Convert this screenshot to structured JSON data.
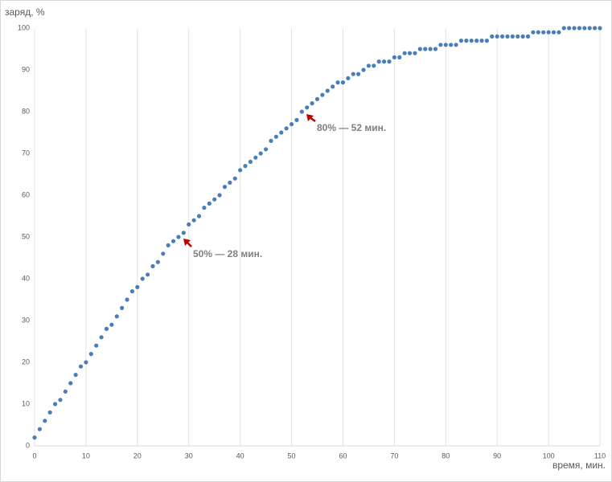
{
  "chart_data": {
    "type": "scatter",
    "y_label": "заряд, %",
    "x_label": "время, мин.",
    "annotations": [
      {
        "text": "50% — 28 мин."
      },
      {
        "text": "80% — 52 мин."
      }
    ],
    "series": [
      {
        "name": "заряд",
        "color": "#4a7ebb",
        "x": [
          0,
          1,
          2,
          3,
          4,
          5,
          6,
          7,
          8,
          9,
          10,
          11,
          12,
          13,
          14,
          15,
          16,
          17,
          18,
          19,
          20,
          21,
          22,
          23,
          24,
          25,
          26,
          27,
          28,
          29,
          30,
          31,
          32,
          33,
          34,
          35,
          36,
          37,
          38,
          39,
          40,
          41,
          42,
          43,
          44,
          45,
          46,
          47,
          48,
          49,
          50,
          51,
          52,
          53,
          54,
          55,
          56,
          57,
          58,
          59,
          60,
          61,
          62,
          63,
          64,
          65,
          66,
          67,
          68,
          69,
          70,
          71,
          72,
          73,
          74,
          75,
          76,
          77,
          78,
          79,
          80,
          81,
          82,
          83,
          84,
          85,
          86,
          87,
          88,
          89,
          90,
          91,
          92,
          93,
          94,
          95,
          96,
          97,
          98,
          99,
          100,
          101,
          102,
          103,
          104,
          105,
          106,
          107,
          108,
          109,
          110
        ],
        "values": [
          2,
          4,
          6,
          8,
          10,
          11,
          13,
          15,
          17,
          19,
          20,
          22,
          24,
          26,
          28,
          29,
          31,
          33,
          35,
          37,
          38,
          40,
          41,
          43,
          44,
          46,
          48,
          49,
          50,
          51,
          53,
          54,
          55,
          57,
          58,
          59,
          60,
          62,
          63,
          64,
          66,
          67,
          68,
          69,
          70,
          71,
          73,
          74,
          75,
          76,
          77,
          78,
          80,
          81,
          82,
          83,
          84,
          85,
          86,
          87,
          87,
          88,
          89,
          89,
          90,
          91,
          91,
          92,
          92,
          92,
          93,
          93,
          94,
          94,
          94,
          95,
          95,
          95,
          95,
          96,
          96,
          96,
          96,
          97,
          97,
          97,
          97,
          97,
          97,
          98,
          98,
          98,
          98,
          98,
          98,
          98,
          98,
          99,
          99,
          99,
          99,
          99,
          99,
          100,
          100,
          100,
          100,
          100,
          100,
          100,
          100
        ]
      }
    ],
    "xlim": [
      0,
      110
    ],
    "xticks": [
      0,
      10,
      20,
      30,
      40,
      50,
      60,
      70,
      80,
      90,
      100,
      110
    ],
    "ylim": [
      0,
      100
    ],
    "yticks": [
      0,
      10,
      20,
      30,
      40,
      50,
      60,
      70,
      80,
      90,
      100
    ],
    "grid": "x"
  }
}
